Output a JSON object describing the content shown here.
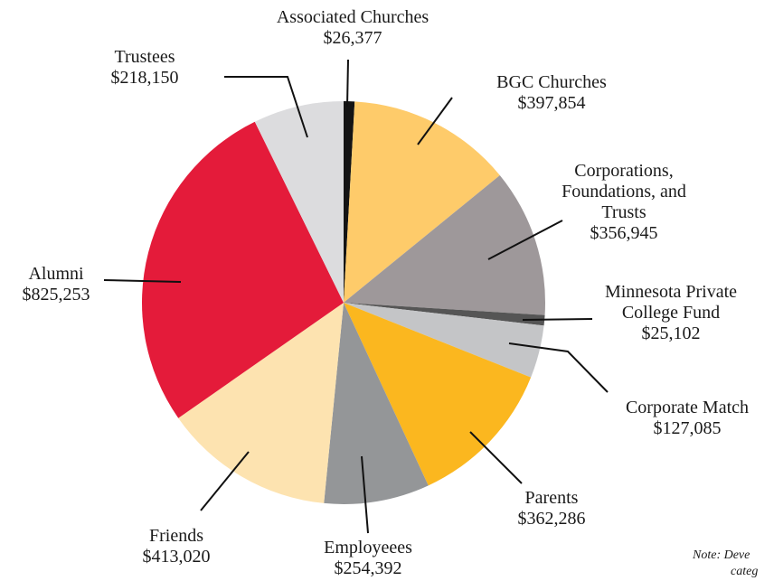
{
  "chart_data": {
    "type": "pie",
    "categories": [
      "Associated Churches",
      "BGC Churches",
      "Corporations, Foundations, and Trusts",
      "Minnesota Private College Fund",
      "Corporate Match",
      "Parents",
      "Employeees",
      "Friends",
      "Alumni",
      "Trustees"
    ],
    "values": [
      26377,
      397854,
      356945,
      25102,
      127085,
      362286,
      254392,
      413020,
      825253,
      218150
    ],
    "value_labels": [
      "$26,377",
      "$397,854",
      "$356,945",
      "$25,102",
      "$127,085",
      "$362,286",
      "$254,392",
      "$413,020",
      "$825,253",
      "$218,150"
    ],
    "colors": [
      "#141414",
      "#fecb6a",
      "#9e989a",
      "#555555",
      "#c4c5c7",
      "#fbb71f",
      "#949698",
      "#fde3b0",
      "#e41b3a",
      "#dcdcde"
    ],
    "annotations": [
      "Note: Deve",
      "categ"
    ]
  }
}
